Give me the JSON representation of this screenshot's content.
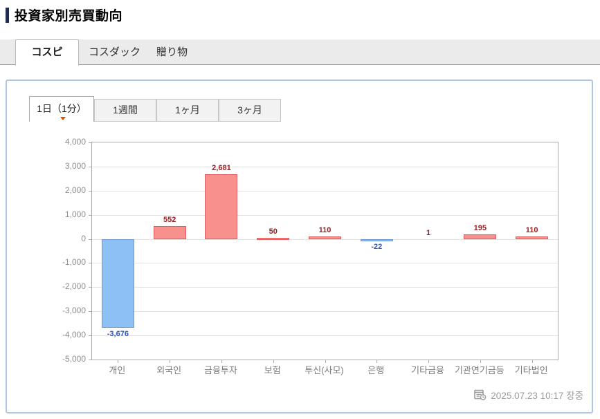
{
  "header": {
    "title": "投資家別売買動向"
  },
  "market_tabs": {
    "items": [
      {
        "label": "コスピ",
        "active": true
      },
      {
        "label": "コスダック",
        "active": false
      },
      {
        "label": "贈り物",
        "active": false
      }
    ]
  },
  "period_tabs": {
    "items": [
      {
        "label": "1日（1分）",
        "active": true,
        "marker_icon": "triangle-down-icon"
      },
      {
        "label": "1週間",
        "active": false
      },
      {
        "label": "1ヶ月",
        "active": false
      },
      {
        "label": "3ヶ月",
        "active": false
      }
    ]
  },
  "footer": {
    "timestamp": "2025.07.23 10:17 장중",
    "icon": "calendar-clock-icon"
  },
  "colors": {
    "panel_border": "#aec5e3",
    "positive_bar": "#f8908e",
    "positive_border": "#de5c5b",
    "negative_bar": "#8dc1f6",
    "negative_border": "#6b96d2",
    "positive_label": "#a21c21",
    "negative_label": "#2b55c0",
    "accent_marker": "#d45500"
  },
  "chart_data": {
    "type": "bar",
    "categories": [
      "개인",
      "외국인",
      "금융투자",
      "보험",
      "투신(사모)",
      "은행",
      "기타금융",
      "기관연기금등",
      "기타법인"
    ],
    "values": [
      -3676,
      552,
      2681,
      50,
      110,
      -22,
      1,
      195,
      110
    ],
    "value_labels": [
      "-3,676",
      "552",
      "2,681",
      "50",
      "110",
      "-22",
      "1",
      "195",
      "110"
    ],
    "title": "",
    "xlabel": "",
    "ylabel": "",
    "ylim": [
      -5000,
      4000
    ],
    "ytick_interval": 1000,
    "ytick_labels": [
      "4,000",
      "3,000",
      "2,000",
      "1,000",
      "0",
      "-1,000",
      "-2,000",
      "-3,000",
      "-4,000",
      "-5,000"
    ],
    "grid": true,
    "legend": false
  }
}
